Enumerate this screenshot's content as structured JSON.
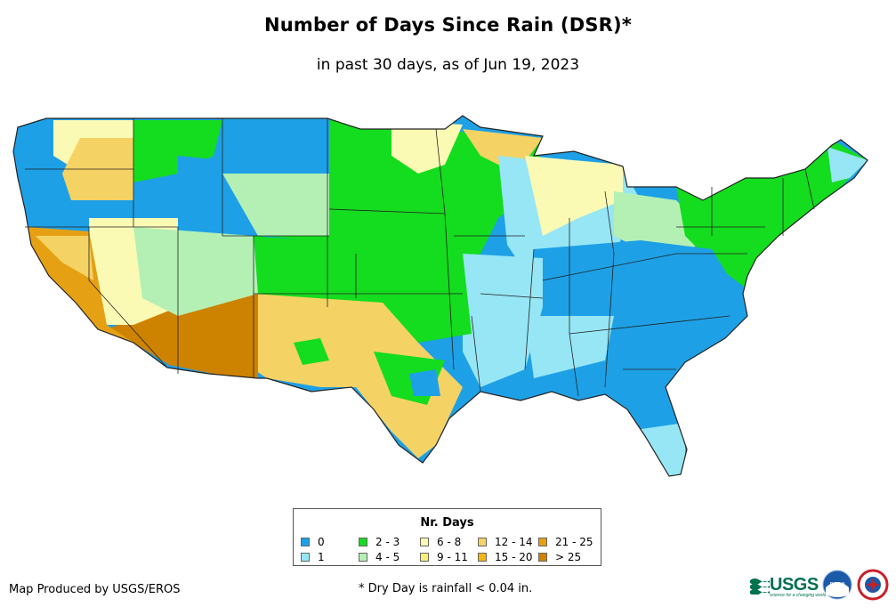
{
  "title": "Number of Days Since Rain (DSR)*",
  "subtitle": "in past 30 days, as of Jun 19, 2023",
  "legend": {
    "title": "Nr. Days",
    "items": [
      {
        "label": "0",
        "color": "#1ea0e6"
      },
      {
        "label": "1",
        "color": "#96e6f5"
      },
      {
        "label": "2 - 3",
        "color": "#14dc1e"
      },
      {
        "label": "4 - 5",
        "color": "#b4f0b4"
      },
      {
        "label": "6 - 8",
        "color": "#fafab4"
      },
      {
        "label": "9 - 11",
        "color": "#f5f078"
      },
      {
        "label": "12 - 14",
        "color": "#f5d264"
      },
      {
        "label": "15 - 20",
        "color": "#f5b414"
      },
      {
        "label": "21 - 25",
        "color": "#e6a014"
      },
      {
        "label": "> 25",
        "color": "#cd8200"
      }
    ]
  },
  "credit": "Map Produced by USGS/EROS",
  "footnote": "* Dry Day is rainfall < 0.04 in.",
  "logos": {
    "usgs": "USGS",
    "usgs_tagline": "science for a changing world",
    "noaa": "noaa"
  }
}
